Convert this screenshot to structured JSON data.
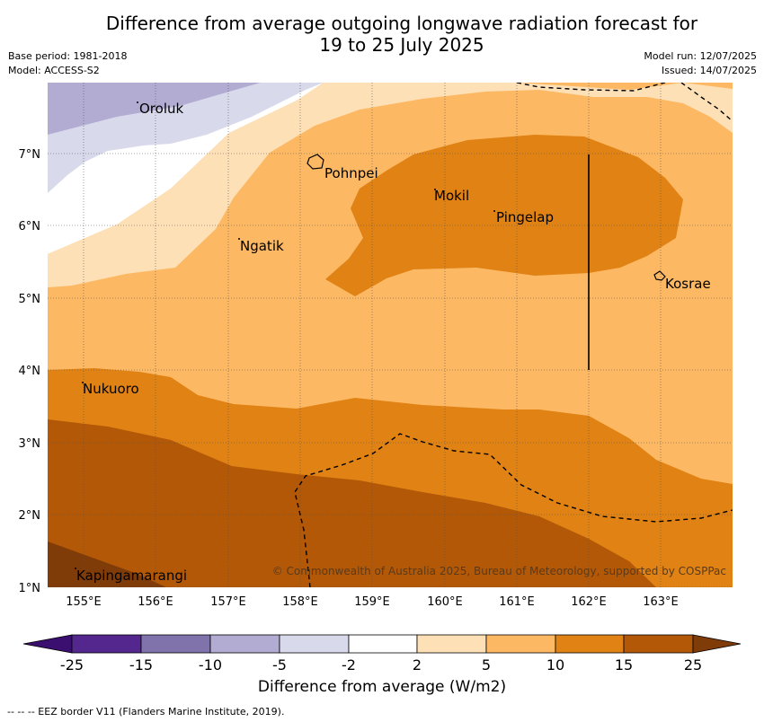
{
  "title_line1": "Difference from average outgoing longwave radiation forecast for",
  "title_line2": "19 to 25 July 2025",
  "base_period": "Base period: 1981-2018",
  "model": "Model: ACCESS-S2",
  "model_run": "Model run: 12/07/2025",
  "issued": "Issued: 14/07/2025",
  "axes": {
    "lon_ticks": [
      "155°E",
      "156°E",
      "157°E",
      "158°E",
      "159°E",
      "160°E",
      "161°E",
      "162°E",
      "163°E"
    ],
    "lat_ticks": [
      "1°N",
      "2°N",
      "3°N",
      "4°N",
      "5°N",
      "6°N",
      "7°N"
    ]
  },
  "places": [
    {
      "name": "Oroluk"
    },
    {
      "name": "Pohnpei"
    },
    {
      "name": "Mokil"
    },
    {
      "name": "Pingelap"
    },
    {
      "name": "Ngatik"
    },
    {
      "name": "Kosrae"
    },
    {
      "name": "Nukuoro"
    },
    {
      "name": "Kapingamarangi"
    }
  ],
  "copyright": "© Commonwealth of Australia 2025, Bureau of Meteorology, supported by COSPPac",
  "colorbar": {
    "ticks": [
      "-25",
      "-15",
      "-10",
      "-5",
      "-2",
      "2",
      "5",
      "10",
      "15",
      "25"
    ],
    "colors": [
      "#3b0f6f",
      "#54278f",
      "#8073ac",
      "#b2abd2",
      "#d8daeb",
      "#ffffff",
      "#fee0b6",
      "#fdb863",
      "#e08214",
      "#b35806",
      "#7f3b08"
    ],
    "label": "Difference from average (W/m2)"
  },
  "footnote": "-- -- -- EEZ border V11 (Flanders Marine Institute, 2019)."
}
